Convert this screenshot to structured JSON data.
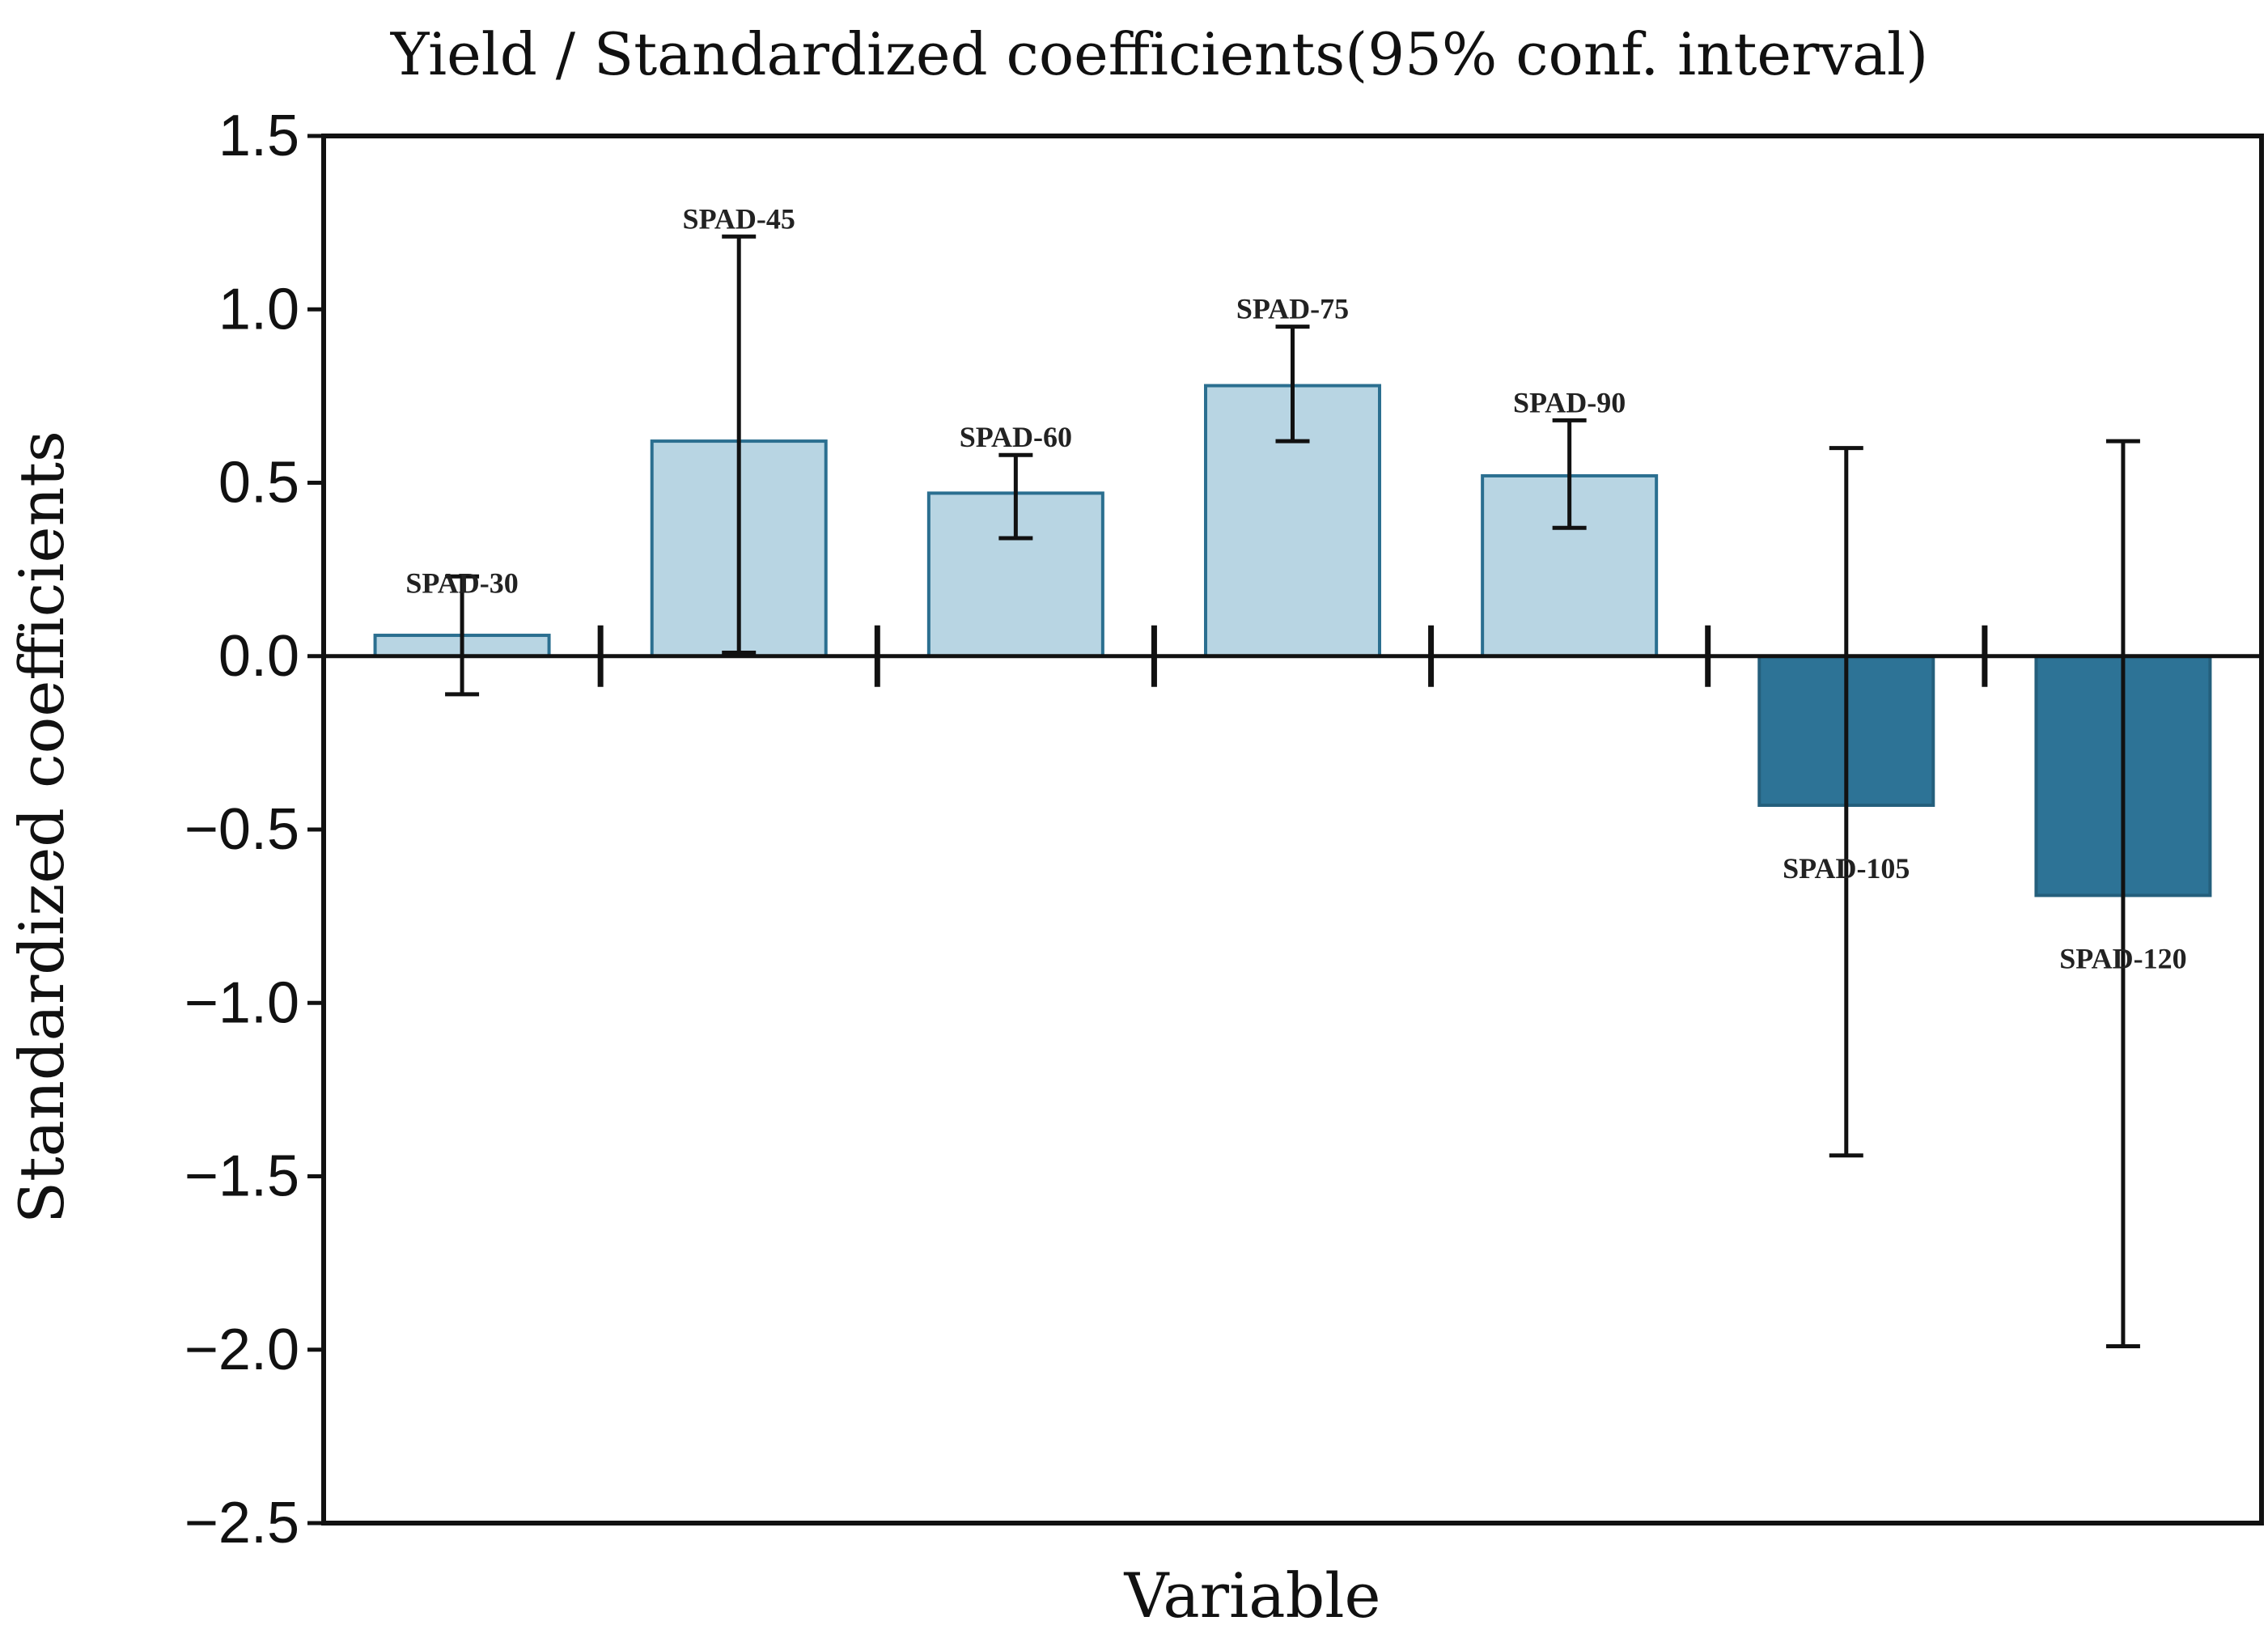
{
  "chart_data": {
    "type": "bar",
    "title": "Yield / Standardized coefficients(95% conf. interval)",
    "xlabel": "Variable",
    "ylabel": "Standardized coefficients",
    "ylim": [
      -2.5,
      1.5
    ],
    "yticks": [
      1.5,
      1.0,
      0.5,
      0.0,
      -0.5,
      -1.0,
      -1.5,
      -2.0,
      -2.5
    ],
    "ytick_labels": [
      "1.5",
      "1.0",
      "0.5",
      "0.0",
      "−0.5",
      "−1.0",
      "−1.5",
      "−2.0",
      "−2.5"
    ],
    "grid": false,
    "categories": [
      "SPAD-30",
      "SPAD-45",
      "SPAD-60",
      "SPAD-75",
      "SPAD-90",
      "SPAD-105",
      "SPAD-120"
    ],
    "values": [
      0.06,
      0.62,
      0.47,
      0.78,
      0.52,
      -0.43,
      -0.69
    ],
    "ci_lower": [
      -0.11,
      0.01,
      0.34,
      0.62,
      0.37,
      -1.44,
      -1.99
    ],
    "ci_upper": [
      0.23,
      1.21,
      0.58,
      0.95,
      0.68,
      0.6,
      0.62
    ],
    "colors": {
      "positive": "#b8d5e3",
      "positive_border": "#2b6f90",
      "negative": "#2d7396",
      "negative_border": "#245f7c",
      "axis": "#111111",
      "errorbar": "#111111"
    }
  }
}
